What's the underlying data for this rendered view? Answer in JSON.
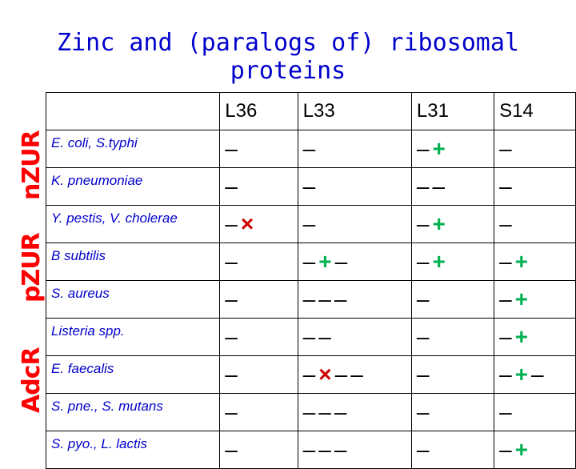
{
  "title": "Zinc and (paralogs of) ribosomal proteins",
  "side_labels": {
    "nzur": {
      "text": "nZUR",
      "color": "#ff0000"
    },
    "pzur": {
      "text": "pZUR",
      "color": "#ff0000"
    },
    "adcr": {
      "text": "AdcR",
      "color": "#ff0000"
    }
  },
  "colors": {
    "plus": "#00b050",
    "cross": "#cc0000",
    "species": "#0000cc"
  },
  "table": {
    "headers": [
      "L36",
      "L33",
      "L31",
      "S14"
    ],
    "rows": [
      {
        "name": "E. coli, S.typhi",
        "cells": [
          "–",
          "–",
          "–+",
          "–"
        ]
      },
      {
        "name": "K. pneumoniae",
        "cells": [
          "–",
          "–",
          "––",
          "–"
        ]
      },
      {
        "name": "Y. pestis, V. cholerae",
        "cells": [
          "–×",
          "–",
          "–+",
          "–"
        ]
      },
      {
        "name": "B subtilis",
        "cells": [
          "–",
          "–+–",
          "–+",
          "–+"
        ]
      },
      {
        "name": "S. aureus",
        "cells": [
          "–",
          "–––",
          "–",
          "–+"
        ]
      },
      {
        "name": "Listeria spp.",
        "cells": [
          "–",
          "––",
          "–",
          "–+"
        ]
      },
      {
        "name": "E. faecalis",
        "cells": [
          "–",
          "–×––",
          "–",
          "–+–"
        ]
      },
      {
        "name": "S. pne., S. mutans",
        "cells": [
          "–",
          "–––",
          "–",
          "–"
        ]
      },
      {
        "name": "S. pyo., L. lactis",
        "cells": [
          "–",
          "–––",
          "–",
          "–+"
        ]
      }
    ]
  }
}
